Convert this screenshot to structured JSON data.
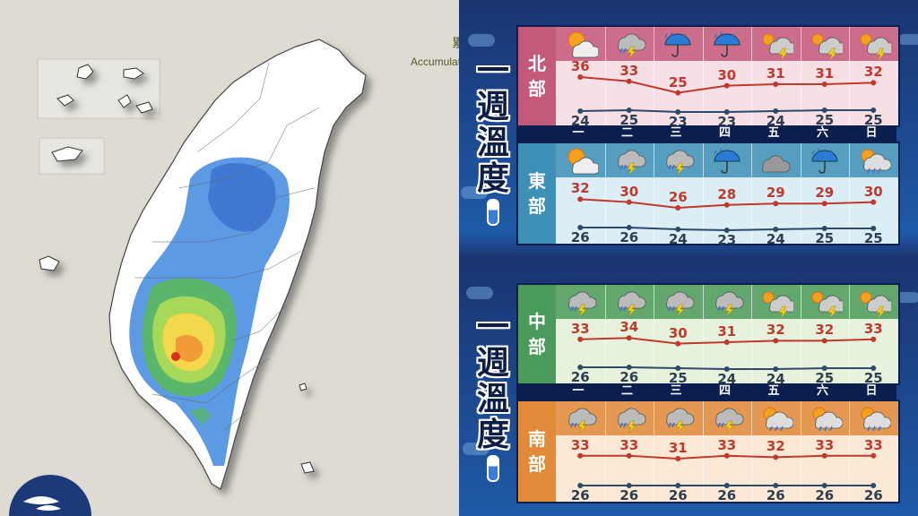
{
  "map": {
    "header_partial": "累",
    "legend_partial": "Accumulatio"
  },
  "days": [
    "一",
    "二",
    "三",
    "四",
    "五",
    "六",
    "日"
  ],
  "week_title": [
    "一",
    "週",
    "溫",
    "度"
  ],
  "colors": {
    "north": "#c45a7a",
    "north_bg": "#f7dfe6",
    "east": "#3d8fb5",
    "east_bg": "#dbeef6",
    "central": "#4a9a5a",
    "central_bg": "#e6f2dc",
    "south": "#e08a3a",
    "south_bg": "#fbe9d6",
    "high": "#c0392b",
    "low": "#2c4a6a"
  },
  "regions": [
    {
      "key": "north",
      "label": [
        "北",
        "部"
      ],
      "icons": [
        "sun-cloud-icon",
        "thunder-rain-icon",
        "umbrella-rain-icon",
        "umbrella-rain-icon",
        "sun-thunder-icon",
        "sun-thunder-icon",
        "sun-thunder-icon"
      ],
      "high": [
        36,
        33,
        25,
        30,
        31,
        31,
        32
      ],
      "low": [
        24,
        25,
        23,
        23,
        24,
        25,
        25
      ]
    },
    {
      "key": "east",
      "label": [
        "東",
        "部"
      ],
      "icons": [
        "sun-cloud-icon",
        "thunder-rain-icon",
        "thunder-rain-icon",
        "umbrella-rain-icon",
        "cloudy-icon",
        "umbrella-rain-icon",
        "sun-rain-icon"
      ],
      "high": [
        32,
        30,
        26,
        28,
        29,
        29,
        30
      ],
      "low": [
        26,
        26,
        24,
        23,
        24,
        25,
        25
      ]
    },
    {
      "key": "central",
      "label": [
        "中",
        "部"
      ],
      "icons": [
        "thunder-rain-icon",
        "thunder-rain-icon",
        "thunder-rain-icon",
        "thunder-rain-icon",
        "sun-thunder-icon",
        "sun-thunder-icon",
        "sun-thunder-icon"
      ],
      "high": [
        33,
        34,
        30,
        31,
        32,
        32,
        33
      ],
      "low": [
        26,
        26,
        25,
        24,
        24,
        25,
        25
      ]
    },
    {
      "key": "south",
      "label": [
        "南",
        "部"
      ],
      "icons": [
        "thunder-rain-icon",
        "thunder-rain-icon",
        "thunder-rain-icon",
        "thunder-rain-icon",
        "sun-rain-icon",
        "sun-rain-icon",
        "sun-rain-icon"
      ],
      "high": [
        33,
        33,
        31,
        33,
        32,
        33,
        33
      ],
      "low": [
        26,
        26,
        26,
        26,
        26,
        26,
        26
      ]
    }
  ]
}
